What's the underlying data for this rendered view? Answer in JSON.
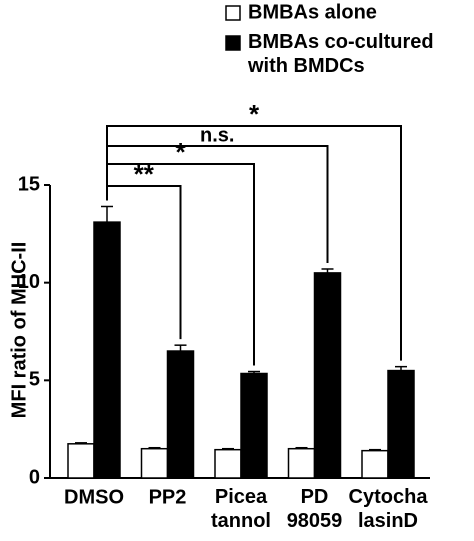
{
  "chart_data": {
    "type": "bar",
    "y_label": "MFI ratio of MHC-II",
    "categories": [
      "DMSO",
      "PP2",
      "Picea\ntannol",
      "PD\n98059",
      "Cytocha\nlasinD"
    ],
    "series": [
      {
        "name": "BMBAs alone",
        "color": "#ffffff",
        "values": [
          1.75,
          1.5,
          1.45,
          1.5,
          1.4
        ],
        "errors": [
          0.05,
          0.05,
          0.05,
          0.05,
          0.05
        ]
      },
      {
        "name": "BMBAs co-cultured\nwith BMDCs",
        "color": "#000000",
        "values": [
          13.1,
          6.5,
          5.35,
          10.5,
          5.5
        ],
        "errors": [
          0.8,
          0.3,
          0.1,
          0.2,
          0.2
        ]
      }
    ],
    "ylim": [
      0,
      15
    ],
    "yticks": [
      0,
      5,
      10,
      15
    ],
    "comparisons": [
      {
        "text": "**",
        "from": "DMSO",
        "to": "PP2"
      },
      {
        "text": "*",
        "from": "DMSO",
        "to": "Picea\ntannol"
      },
      {
        "text": "n.s.",
        "from": "DMSO",
        "to": "PD\n98059"
      },
      {
        "text": "*",
        "from": "DMSO",
        "to": "Cytocha\nlasinD"
      }
    ]
  }
}
